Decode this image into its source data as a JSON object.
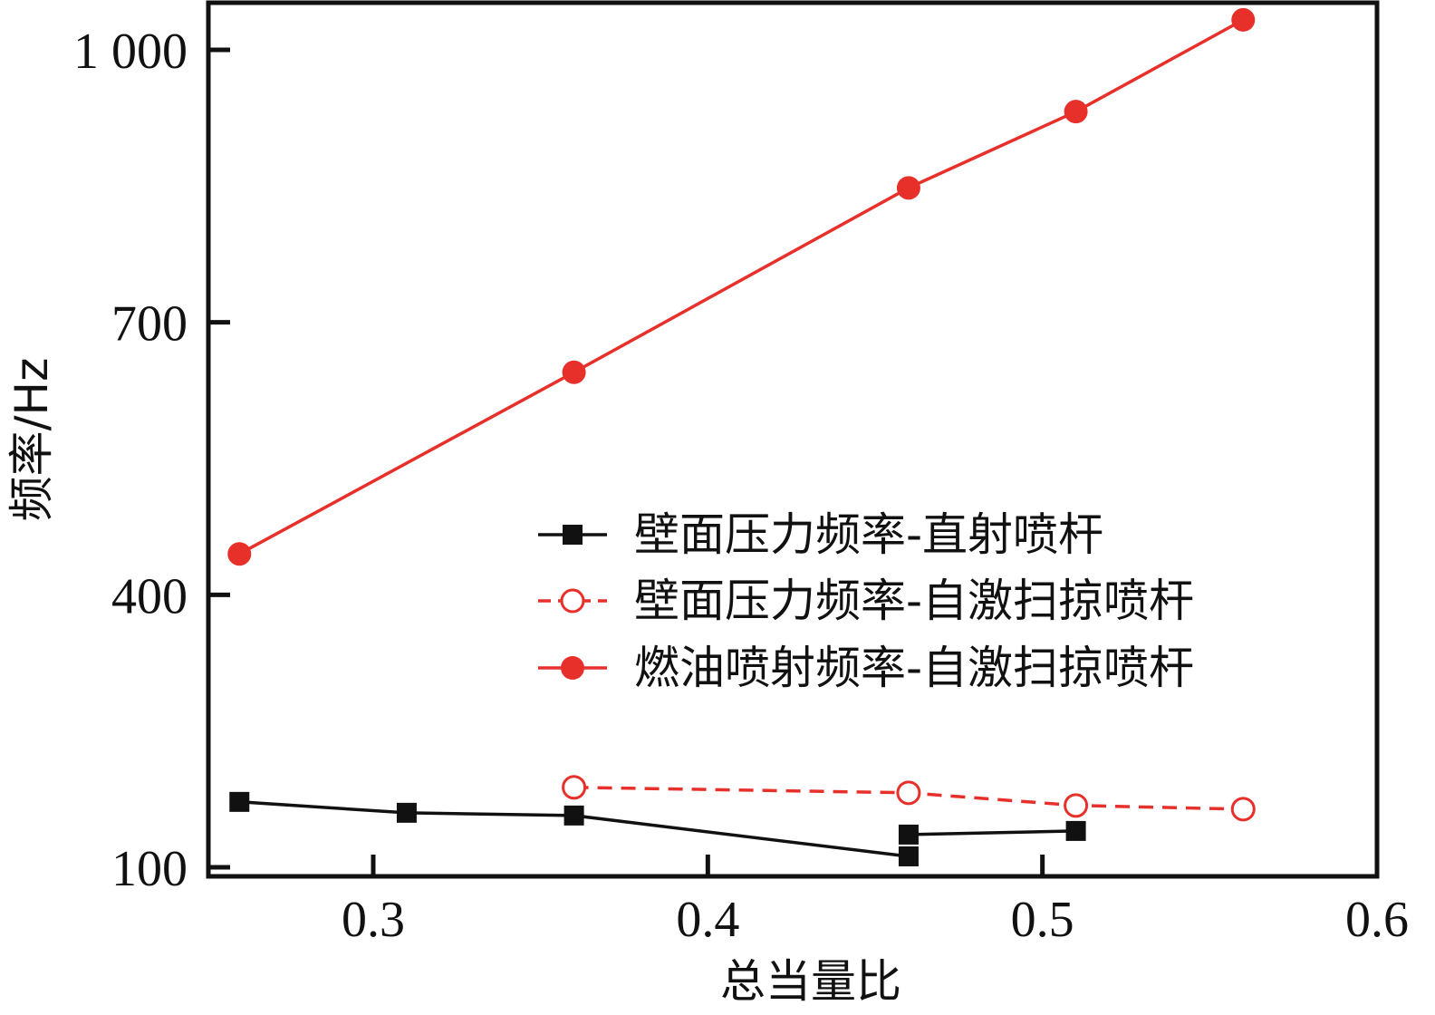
{
  "chart_data": {
    "type": "line",
    "title": "",
    "xlabel": "总当量比",
    "ylabel": "频率/Hz",
    "xlim": [
      0.25,
      0.6
    ],
    "ylim": [
      100,
      1030
    ],
    "xticks": [
      0.3,
      0.4,
      0.5,
      0.6
    ],
    "xtick_labels": [
      "0.3",
      "0.4",
      "0.5",
      "0.6"
    ],
    "yticks": [
      100,
      400,
      700,
      1000
    ],
    "ytick_labels": [
      "100",
      "400",
      "700",
      "1 000"
    ],
    "grid": false,
    "legend_position": "center-right",
    "series": [
      {
        "name": "壁面压力频率-直射喷杆",
        "color": "#111111",
        "line_style": "solid",
        "marker": "square-filled",
        "segments": [
          [
            {
              "x": 0.26,
              "y": 172
            },
            {
              "x": 0.31,
              "y": 160
            },
            {
              "x": 0.36,
              "y": 157
            },
            {
              "x": 0.46,
              "y": 112
            }
          ],
          [
            {
              "x": 0.46,
              "y": 136
            },
            {
              "x": 0.51,
              "y": 140
            }
          ]
        ]
      },
      {
        "name": "壁面压力频率-自激扫掠喷杆",
        "color": "#e8302b",
        "line_style": "dashed",
        "marker": "circle-open",
        "segments": [
          [
            {
              "x": 0.36,
              "y": 188
            },
            {
              "x": 0.46,
              "y": 182
            },
            {
              "x": 0.51,
              "y": 168
            },
            {
              "x": 0.56,
              "y": 164
            }
          ]
        ]
      },
      {
        "name": "燃油喷射频率-自激扫掠喷杆",
        "color": "#e8302b",
        "line_style": "solid",
        "marker": "circle-filled",
        "segments": [
          [
            {
              "x": 0.26,
              "y": 445
            },
            {
              "x": 0.36,
              "y": 645
            },
            {
              "x": 0.46,
              "y": 848
            },
            {
              "x": 0.51,
              "y": 932
            },
            {
              "x": 0.56,
              "y": 1033
            }
          ]
        ]
      }
    ]
  }
}
